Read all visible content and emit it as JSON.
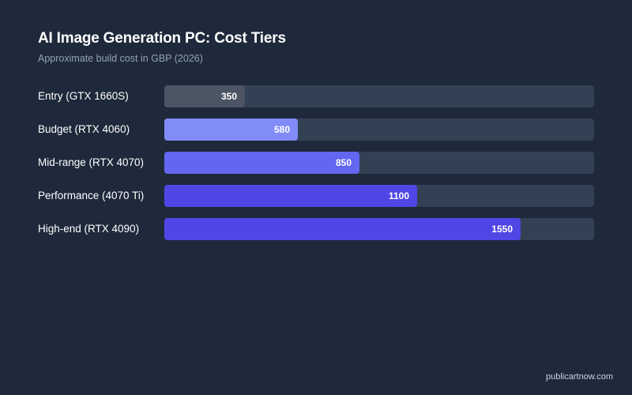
{
  "chart_data": {
    "type": "bar",
    "orientation": "horizontal",
    "title": "AI Image Generation PC: Cost Tiers",
    "subtitle": "Approximate build cost in GBP (2026)",
    "categories": [
      "Entry (GTX 1660S)",
      "Budget (RTX 4060)",
      "Mid-range (RTX 4070)",
      "Performance (4070 Ti)",
      "High-end (RTX 4090)"
    ],
    "values": [
      350,
      580,
      850,
      1100,
      1550
    ],
    "colors": [
      "#4b5563",
      "#818cf8",
      "#6366f1",
      "#4f46e5",
      "#4f46e5"
    ],
    "xlim": [
      0,
      1870
    ],
    "grid": false,
    "data_labels": true
  },
  "footer": {
    "source": "publicartnow.com"
  }
}
